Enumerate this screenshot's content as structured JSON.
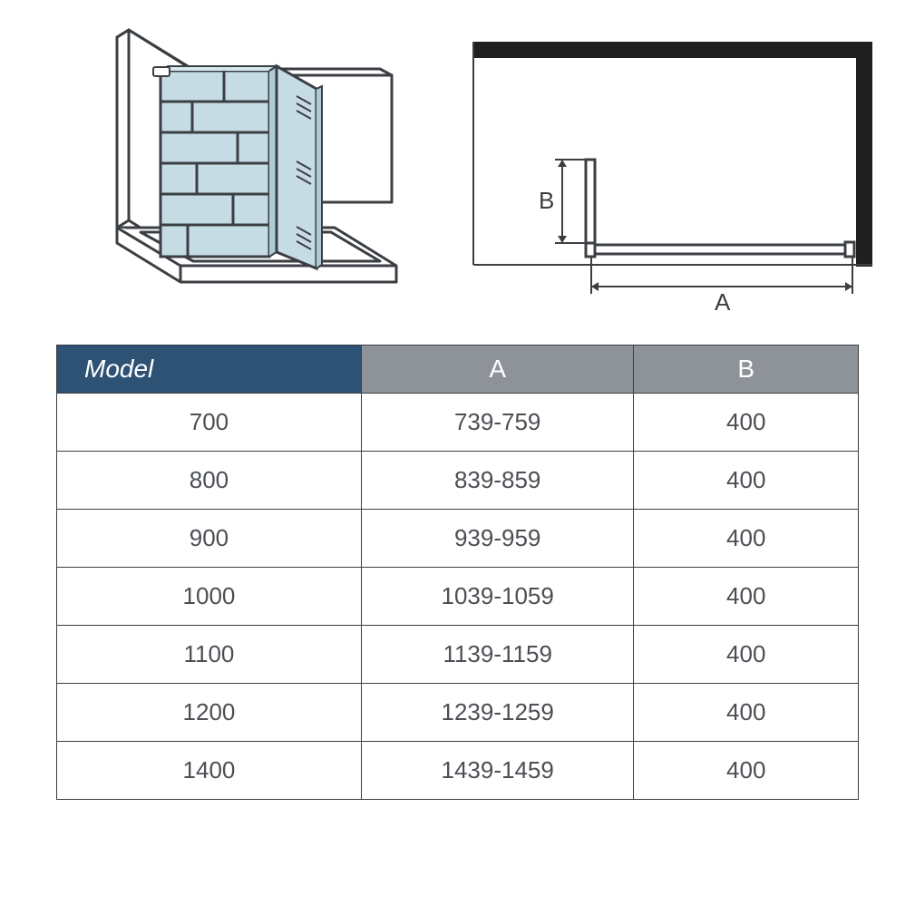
{
  "diagram": {
    "label_A": "A",
    "label_B": "B",
    "glass_fill": "#c6dce4",
    "line_color": "#3b3f43",
    "plan_wall_color": "#1f1f1f"
  },
  "table": {
    "headers": {
      "model": "Model",
      "A": "A",
      "B": "B"
    },
    "header_colors": {
      "model_bg": "#2d5274",
      "dim_bg": "#8d9399",
      "text": "#ffffff",
      "border": "#3b3f43"
    },
    "cell_text_color": "#4b4f54",
    "font_size_header": 28,
    "font_size_cell": 26,
    "rows": [
      {
        "model": "700",
        "A": "739-759",
        "B": "400"
      },
      {
        "model": "800",
        "A": "839-859",
        "B": "400"
      },
      {
        "model": "900",
        "A": "939-959",
        "B": "400"
      },
      {
        "model": "1000",
        "A": "1039-1059",
        "B": "400"
      },
      {
        "model": "1100",
        "A": "1139-1159",
        "B": "400"
      },
      {
        "model": "1200",
        "A": "1239-1259",
        "B": "400"
      },
      {
        "model": "1400",
        "A": "1439-1459",
        "B": "400"
      }
    ]
  }
}
